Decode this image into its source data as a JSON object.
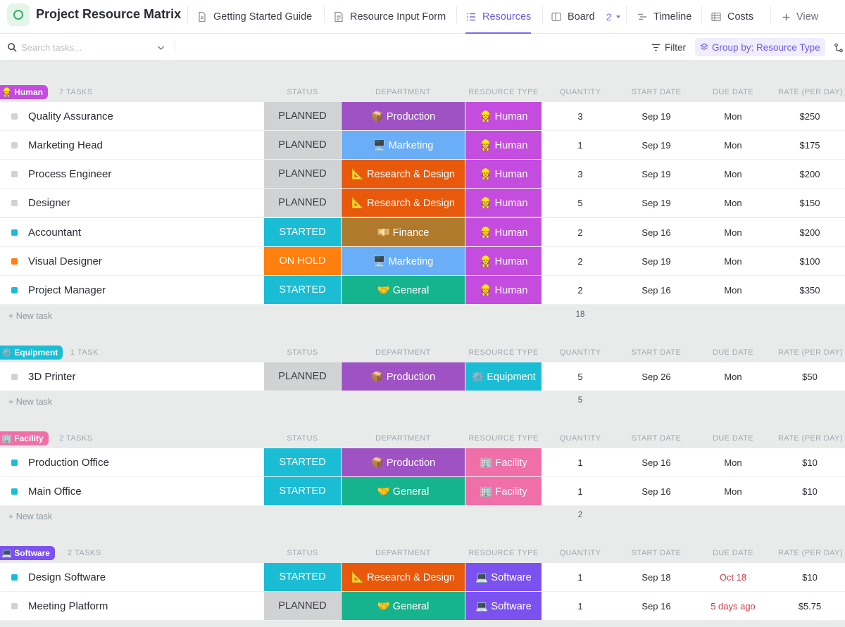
{
  "app": {
    "title": "Project Resource Matrix"
  },
  "tabs": [
    {
      "label": "Getting Started Guide",
      "icon": "doc-icon"
    },
    {
      "label": "Resource Input Form",
      "icon": "form-icon"
    },
    {
      "label": "Resources",
      "icon": "list-icon",
      "active": true
    },
    {
      "label": "Board",
      "icon": "board-icon",
      "count": "2"
    },
    {
      "label": "Timeline",
      "icon": "timeline-icon"
    },
    {
      "label": "Costs",
      "icon": "table-icon"
    },
    {
      "label": "View",
      "icon": "plus-icon"
    }
  ],
  "toolbar": {
    "search_placeholder": "Search tasks...",
    "filter_label": "Filter",
    "groupby_label": "Group by: Resource Type"
  },
  "columns": {
    "status": "STATUS",
    "department": "DEPARTMENT",
    "resource_type": "RESOURCE TYPE",
    "quantity": "QUANTITY",
    "start_date": "START DATE",
    "due_date": "DUE DATE",
    "rate": "RATE (PER DAY)"
  },
  "new_task_label": "+ New task",
  "groups": [
    {
      "label": "👷 Human",
      "count": "7 TASKS",
      "qty_total": "18",
      "rows": [
        {
          "name": "Quality Assurance",
          "status": "PLANNED",
          "department": "📦 Production",
          "resource_type": "👷 Human",
          "quantity": "3",
          "start": "Sep 19",
          "due": "Mon",
          "rate": "$250"
        },
        {
          "name": "Marketing Head",
          "status": "PLANNED",
          "department": "🖥️ Marketing",
          "resource_type": "👷 Human",
          "quantity": "1",
          "start": "Sep 19",
          "due": "Mon",
          "rate": "$175"
        },
        {
          "name": "Process Engineer",
          "status": "PLANNED",
          "department": "📐 Research & Design",
          "resource_type": "👷 Human",
          "quantity": "3",
          "start": "Sep 19",
          "due": "Mon",
          "rate": "$200"
        },
        {
          "name": "Designer",
          "status": "PLANNED",
          "department": "📐 Research & Design",
          "resource_type": "👷 Human",
          "quantity": "5",
          "start": "Sep 19",
          "due": "Mon",
          "rate": "$150"
        },
        {
          "name": "Accountant",
          "status": "STARTED",
          "department": "💴 Finance",
          "resource_type": "👷 Human",
          "quantity": "2",
          "start": "Sep 16",
          "due": "Mon",
          "rate": "$200"
        },
        {
          "name": "Visual Designer",
          "status": "ON HOLD",
          "department": "🖥️ Marketing",
          "resource_type": "👷 Human",
          "quantity": "2",
          "start": "Sep 19",
          "due": "Mon",
          "rate": "$100"
        },
        {
          "name": "Project Manager",
          "status": "STARTED",
          "department": "🤝 General",
          "resource_type": "👷 Human",
          "quantity": "2",
          "start": "Sep 16",
          "due": "Mon",
          "rate": "$350"
        }
      ]
    },
    {
      "label": "⚙️ Equipment",
      "count": "1 TASK",
      "qty_total": "5",
      "rows": [
        {
          "name": "3D Printer",
          "status": "PLANNED",
          "department": "📦 Production",
          "resource_type": "⚙️ Equipment",
          "quantity": "5",
          "start": "Sep 26",
          "due": "Mon",
          "rate": "$50"
        }
      ]
    },
    {
      "label": "🏢 Facility",
      "count": "2 TASKS",
      "qty_total": "2",
      "rows": [
        {
          "name": "Production Office",
          "status": "STARTED",
          "department": "📦 Production",
          "resource_type": "🏢 Facility",
          "quantity": "1",
          "start": "Sep 16",
          "due": "Mon",
          "rate": "$10"
        },
        {
          "name": "Main Office",
          "status": "STARTED",
          "department": "🤝 General",
          "resource_type": "🏢 Facility",
          "quantity": "1",
          "start": "Sep 16",
          "due": "Mon",
          "rate": "$10"
        }
      ]
    },
    {
      "label": "💻 Software",
      "count": "2 TASKS",
      "rows": [
        {
          "name": "Design Software",
          "status": "STARTED",
          "department": "📐 Research & Design",
          "resource_type": "💻 Software",
          "quantity": "1",
          "start": "Sep 18",
          "due": "Oct 18",
          "rate": "$10"
        },
        {
          "name": "Meeting Platform",
          "status": "PLANNED",
          "department": "🤝 General",
          "resource_type": "💻 Software",
          "quantity": "1",
          "start": "Sep 16",
          "due": "5 days ago",
          "rate": "$5.75"
        }
      ]
    }
  ],
  "colors": {
    "accent": "#7b68ee",
    "status": {
      "PLANNED": "#d0d2d4",
      "STARTED": "#1bbdd4",
      "ON HOLD": "#ff7f0f"
    },
    "department": {
      "Production": "#9e52c4",
      "Marketing": "#6aaef8",
      "Research & Design": "#e8590c",
      "Finance": "#b07a2c",
      "General": "#16b48e"
    },
    "resource_type": {
      "Human": "#c44ddf",
      "Equipment": "#1bbdd4",
      "Facility": "#f06fa9",
      "Software": "#7b52f0"
    },
    "overdue": "#d33d44"
  }
}
